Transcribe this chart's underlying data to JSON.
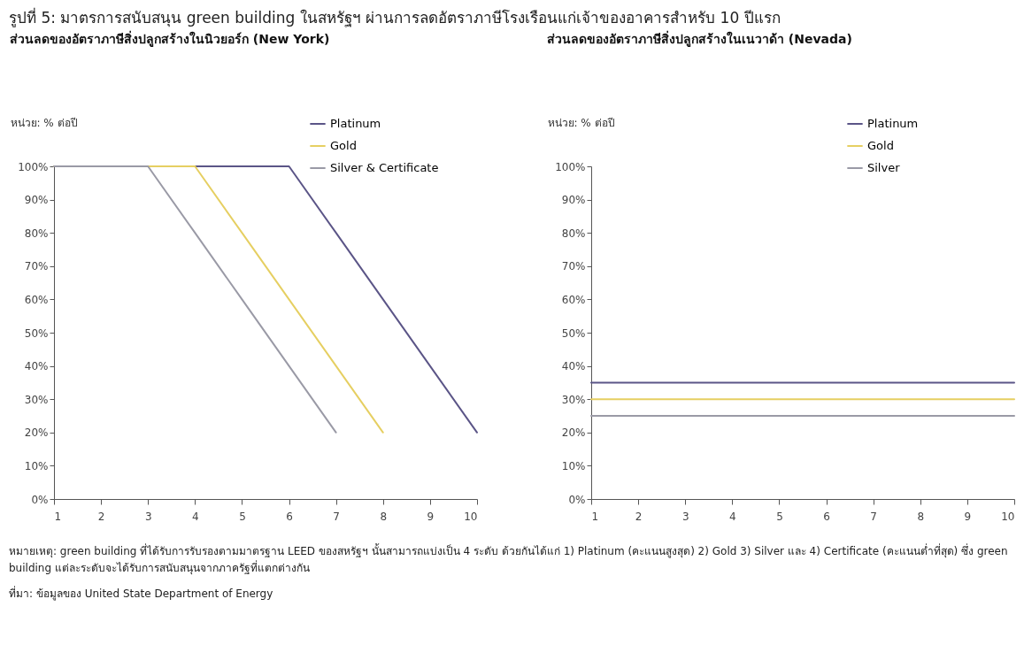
{
  "chart_data": [
    {
      "type": "line",
      "title": "ส่วนลดของอัตราภาษีสิ่งปลูกสร้างในนิวยอร์ก (New York)",
      "ylabel": "หน่วย: % ต่อปี",
      "annotations": [
        "รูปที่ 5: มาตรการสนับสนุน green building ในสหรัฐฯ ผ่านการลดอัตราภาษีโรงเรือนแก่เจ้าของอาคารสำหรับ 10 ปีแรก"
      ],
      "x": [
        1,
        2,
        3,
        4,
        5,
        6,
        7,
        8,
        9,
        10
      ],
      "series": [
        {
          "name": "Platinum",
          "color": "#5b5587",
          "values": [
            100,
            100,
            100,
            100,
            100,
            100,
            80,
            60,
            40,
            20
          ]
        },
        {
          "name": "Gold",
          "color": "#e6cf62",
          "values": [
            100,
            100,
            100,
            100,
            80,
            60,
            40,
            20,
            null,
            null
          ]
        },
        {
          "name": "Silver & Certificate",
          "color": "#9a9aa6",
          "values": [
            100,
            100,
            100,
            80,
            60,
            40,
            20,
            null,
            null,
            null
          ]
        }
      ],
      "xlim": [
        1,
        10
      ],
      "xticks": [
        1,
        2,
        3,
        4,
        5,
        6,
        7,
        8,
        9,
        10
      ],
      "ylim": [
        0,
        100
      ],
      "yticks": [
        {
          "value": 0,
          "label": "0%"
        },
        {
          "value": 10,
          "label": "10%"
        },
        {
          "value": 20,
          "label": "20%"
        },
        {
          "value": 30,
          "label": "30%"
        },
        {
          "value": 40,
          "label": "40%"
        },
        {
          "value": 50,
          "label": "50%"
        },
        {
          "value": 60,
          "label": "60%"
        },
        {
          "value": 70,
          "label": "70%"
        },
        {
          "value": 80,
          "label": "80%"
        },
        {
          "value": 90,
          "label": "90%"
        },
        {
          "value": 100,
          "label": "100%"
        }
      ],
      "legend": "top right",
      "grid": false
    },
    {
      "type": "line",
      "title": "ส่วนลดของอัตราภาษีสิ่งปลูกสร้างในเนวาด้า (Nevada)",
      "ylabel": "หน่วย: % ต่อปี",
      "annotations": [
        "หมายเหตุ: green building ที่ได้รับการรับรองตามมาตรฐาน LEED ของสหรัฐฯ นั้นสามารถแบ่งเป็น 4 ระดับ ด้วยกันได้แก่ 1) Platinum (คะแนนสูงสุด) 2) Gold 3) Silver และ 4) Certificate (คะแนนต่ำที่สุด) ซึ่ง green building แต่ละระดับจะได้รับการสนับสนุนจากภาครัฐที่แตกต่างกัน",
        "ที่มา: ข้อมูลของ United State Department of Energy"
      ],
      "x": [
        1,
        2,
        3,
        4,
        5,
        6,
        7,
        8,
        9,
        10
      ],
      "series": [
        {
          "name": "Platinum",
          "color": "#5b5587",
          "values": [
            35,
            35,
            35,
            35,
            35,
            35,
            35,
            35,
            35,
            35
          ]
        },
        {
          "name": "Gold",
          "color": "#e6cf62",
          "values": [
            30,
            30,
            30,
            30,
            30,
            30,
            30,
            30,
            30,
            30
          ]
        },
        {
          "name": "Silver",
          "color": "#9a9aa6",
          "values": [
            25,
            25,
            25,
            25,
            25,
            25,
            25,
            25,
            25,
            25
          ]
        }
      ],
      "xlim": [
        1,
        10
      ],
      "xticks": [
        1,
        2,
        3,
        4,
        5,
        6,
        7,
        8,
        9,
        10
      ],
      "ylim": [
        0,
        100
      ],
      "yticks": [
        {
          "value": 0,
          "label": "0%"
        },
        {
          "value": 10,
          "label": "10%"
        },
        {
          "value": 20,
          "label": "20%"
        },
        {
          "value": 30,
          "label": "30%"
        },
        {
          "value": 40,
          "label": "40%"
        },
        {
          "value": 50,
          "label": "50%"
        },
        {
          "value": 60,
          "label": "60%"
        },
        {
          "value": 70,
          "label": "70%"
        },
        {
          "value": 80,
          "label": "80%"
        },
        {
          "value": 90,
          "label": "90%"
        },
        {
          "value": 100,
          "label": "100%"
        }
      ],
      "legend": "top right",
      "grid": false
    }
  ]
}
